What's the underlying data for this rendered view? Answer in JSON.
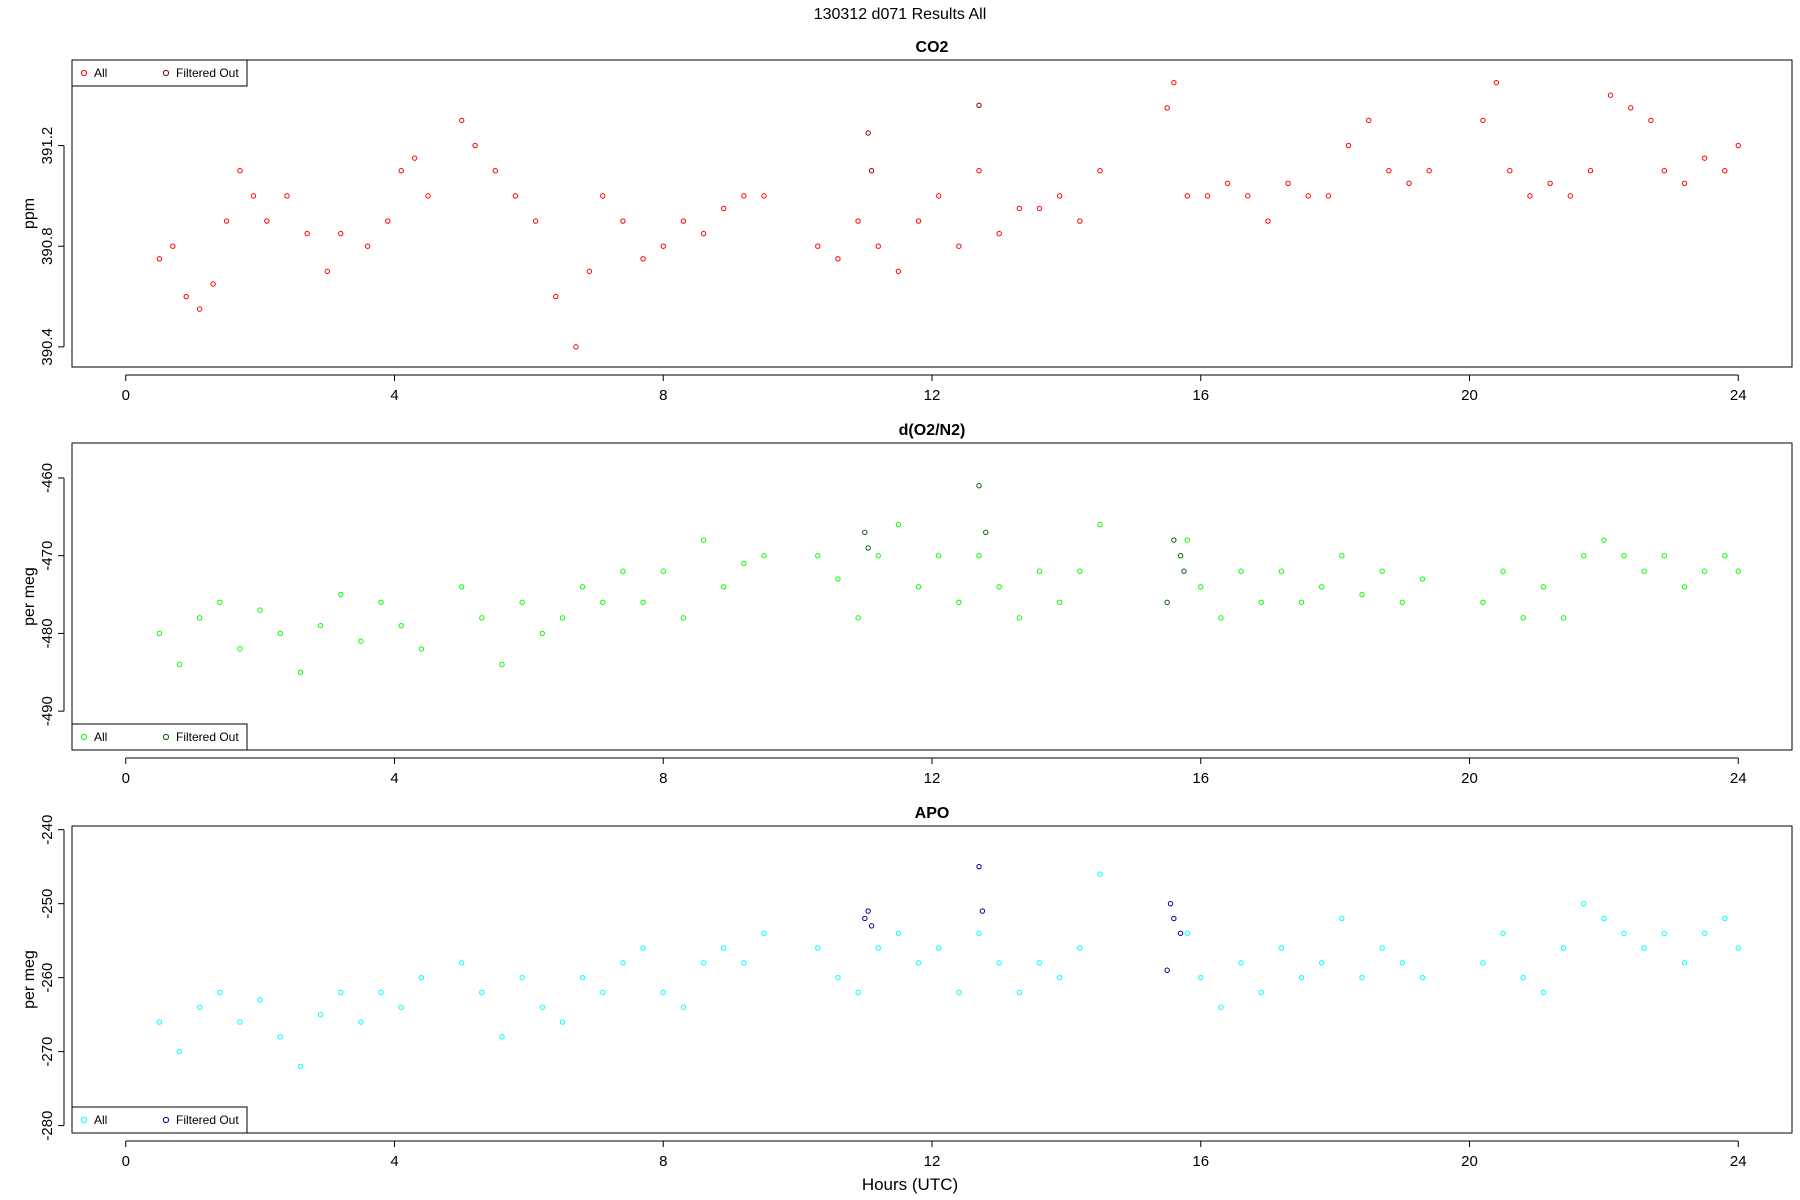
{
  "page_title": "130312   d071   Results All",
  "xlabel": "Hours (UTC)",
  "legend_labels": [
    "All",
    "Filtered Out"
  ],
  "chart_data": [
    {
      "type": "scatter",
      "title": "CO2",
      "ylabel": "ppm",
      "xlim": [
        -0.8,
        24.8
      ],
      "ylim": [
        390.32,
        391.54
      ],
      "xticks": [
        "0",
        "4",
        "8",
        "12",
        "16",
        "20",
        "24"
      ],
      "yticks": [
        "390.4",
        "390.8",
        "391.2"
      ],
      "legend_position": "top-left",
      "colors": {
        "all": "#ff0000",
        "filtered": "#8b0000"
      },
      "series": [
        {
          "name": "All",
          "points": [
            [
              0.5,
              390.75
            ],
            [
              0.7,
              390.8
            ],
            [
              0.9,
              390.6
            ],
            [
              1.1,
              390.55
            ],
            [
              1.3,
              390.65
            ],
            [
              1.5,
              390.9
            ],
            [
              1.7,
              391.1
            ],
            [
              1.9,
              391.0
            ],
            [
              2.1,
              390.9
            ],
            [
              2.4,
              391.0
            ],
            [
              2.7,
              390.85
            ],
            [
              3.0,
              390.7
            ],
            [
              3.2,
              390.85
            ],
            [
              3.6,
              390.8
            ],
            [
              3.9,
              390.9
            ],
            [
              4.1,
              391.1
            ],
            [
              4.3,
              391.15
            ],
            [
              4.5,
              391.0
            ],
            [
              5.0,
              391.3
            ],
            [
              5.2,
              391.2
            ],
            [
              5.5,
              391.1
            ],
            [
              5.8,
              391.0
            ],
            [
              6.1,
              390.9
            ],
            [
              6.4,
              390.6
            ],
            [
              6.7,
              390.4
            ],
            [
              6.9,
              390.7
            ],
            [
              7.1,
              391.0
            ],
            [
              7.4,
              390.9
            ],
            [
              7.7,
              390.75
            ],
            [
              8.0,
              390.8
            ],
            [
              8.3,
              390.9
            ],
            [
              8.6,
              390.85
            ],
            [
              8.9,
              390.95
            ],
            [
              9.2,
              391.0
            ],
            [
              9.5,
              391.0
            ],
            [
              10.3,
              390.8
            ],
            [
              10.6,
              390.75
            ],
            [
              10.9,
              390.9
            ],
            [
              11.2,
              390.8
            ],
            [
              11.5,
              390.7
            ],
            [
              11.8,
              390.9
            ],
            [
              12.1,
              391.0
            ],
            [
              12.4,
              390.8
            ],
            [
              12.7,
              391.1
            ],
            [
              13.0,
              390.85
            ],
            [
              13.3,
              390.95
            ],
            [
              13.6,
              390.95
            ],
            [
              13.9,
              391.0
            ],
            [
              14.2,
              390.9
            ],
            [
              14.5,
              391.1
            ],
            [
              15.5,
              391.35
            ],
            [
              15.6,
              391.45
            ],
            [
              15.8,
              391.0
            ],
            [
              16.1,
              391.0
            ],
            [
              16.4,
              391.05
            ],
            [
              16.7,
              391.0
            ],
            [
              17.0,
              390.9
            ],
            [
              17.3,
              391.05
            ],
            [
              17.6,
              391.0
            ],
            [
              17.9,
              391.0
            ],
            [
              18.2,
              391.2
            ],
            [
              18.5,
              391.3
            ],
            [
              18.8,
              391.1
            ],
            [
              19.1,
              391.05
            ],
            [
              19.4,
              391.1
            ],
            [
              20.2,
              391.3
            ],
            [
              20.4,
              391.45
            ],
            [
              20.6,
              391.1
            ],
            [
              20.9,
              391.0
            ],
            [
              21.2,
              391.05
            ],
            [
              21.5,
              391.0
            ],
            [
              21.8,
              391.1
            ],
            [
              22.1,
              391.4
            ],
            [
              22.4,
              391.35
            ],
            [
              22.7,
              391.3
            ],
            [
              22.9,
              391.1
            ],
            [
              23.2,
              391.05
            ],
            [
              23.5,
              391.15
            ],
            [
              23.8,
              391.1
            ],
            [
              24.0,
              391.2
            ]
          ]
        },
        {
          "name": "Filtered Out",
          "points": [
            [
              11.05,
              391.25
            ],
            [
              11.1,
              391.1
            ],
            [
              12.7,
              391.36
            ]
          ]
        }
      ]
    },
    {
      "type": "scatter",
      "title": "d(O2/N2)",
      "ylabel": "per meg",
      "xlim": [
        -0.8,
        24.8
      ],
      "ylim": [
        -495,
        -455.5
      ],
      "xticks": [
        "0",
        "4",
        "8",
        "12",
        "16",
        "20",
        "24"
      ],
      "yticks": [
        "-460",
        "-470",
        "-480",
        "-490"
      ],
      "legend_position": "bottom-left",
      "colors": {
        "all": "#00ff00",
        "filtered": "#006400"
      },
      "series": [
        {
          "name": "All",
          "points": [
            [
              0.5,
              -480
            ],
            [
              0.8,
              -484
            ],
            [
              1.1,
              -478
            ],
            [
              1.4,
              -476
            ],
            [
              1.7,
              -482
            ],
            [
              2.0,
              -477
            ],
            [
              2.3,
              -480
            ],
            [
              2.6,
              -485
            ],
            [
              2.9,
              -479
            ],
            [
              3.2,
              -475
            ],
            [
              3.5,
              -481
            ],
            [
              3.8,
              -476
            ],
            [
              4.1,
              -479
            ],
            [
              4.4,
              -482
            ],
            [
              5.0,
              -474
            ],
            [
              5.3,
              -478
            ],
            [
              5.6,
              -484
            ],
            [
              5.9,
              -476
            ],
            [
              6.2,
              -480
            ],
            [
              6.5,
              -478
            ],
            [
              6.8,
              -474
            ],
            [
              7.1,
              -476
            ],
            [
              7.4,
              -472
            ],
            [
              7.7,
              -476
            ],
            [
              8.0,
              -472
            ],
            [
              8.3,
              -478
            ],
            [
              8.6,
              -468
            ],
            [
              8.9,
              -474
            ],
            [
              9.2,
              -471
            ],
            [
              9.5,
              -470
            ],
            [
              10.3,
              -470
            ],
            [
              10.6,
              -473
            ],
            [
              10.9,
              -478
            ],
            [
              11.2,
              -470
            ],
            [
              11.5,
              -466
            ],
            [
              11.8,
              -474
            ],
            [
              12.1,
              -470
            ],
            [
              12.4,
              -476
            ],
            [
              12.7,
              -470
            ],
            [
              13.0,
              -474
            ],
            [
              13.3,
              -478
            ],
            [
              13.6,
              -472
            ],
            [
              13.9,
              -476
            ],
            [
              14.2,
              -472
            ],
            [
              14.5,
              -466
            ],
            [
              15.8,
              -468
            ],
            [
              16.0,
              -474
            ],
            [
              16.3,
              -478
            ],
            [
              16.6,
              -472
            ],
            [
              16.9,
              -476
            ],
            [
              17.2,
              -472
            ],
            [
              17.5,
              -476
            ],
            [
              17.8,
              -474
            ],
            [
              18.1,
              -470
            ],
            [
              18.4,
              -475
            ],
            [
              18.7,
              -472
            ],
            [
              19.0,
              -476
            ],
            [
              19.3,
              -473
            ],
            [
              20.2,
              -476
            ],
            [
              20.5,
              -472
            ],
            [
              20.8,
              -478
            ],
            [
              21.1,
              -474
            ],
            [
              21.4,
              -478
            ],
            [
              21.7,
              -470
            ],
            [
              22.0,
              -468
            ],
            [
              22.3,
              -470
            ],
            [
              22.6,
              -472
            ],
            [
              22.9,
              -470
            ],
            [
              23.2,
              -474
            ],
            [
              23.5,
              -472
            ],
            [
              23.8,
              -470
            ],
            [
              24.0,
              -472
            ]
          ]
        },
        {
          "name": "Filtered Out",
          "points": [
            [
              11.0,
              -467
            ],
            [
              11.05,
              -469
            ],
            [
              12.7,
              -461
            ],
            [
              12.8,
              -467
            ],
            [
              15.5,
              -476
            ],
            [
              15.6,
              -468
            ],
            [
              15.7,
              -470
            ],
            [
              15.75,
              -472
            ]
          ]
        }
      ]
    },
    {
      "type": "scatter",
      "title": "APO",
      "ylabel": "per meg",
      "xlim": [
        -0.8,
        24.8
      ],
      "ylim": [
        -281,
        -239.5
      ],
      "xticks": [
        "0",
        "4",
        "8",
        "12",
        "16",
        "20",
        "24"
      ],
      "yticks": [
        "-240",
        "-250",
        "-260",
        "-270",
        "-280"
      ],
      "legend_position": "bottom-left",
      "colors": {
        "all": "#00ffff",
        "filtered": "#00008b"
      },
      "series": [
        {
          "name": "All",
          "points": [
            [
              0.5,
              -266
            ],
            [
              0.8,
              -270
            ],
            [
              1.1,
              -264
            ],
            [
              1.4,
              -262
            ],
            [
              1.7,
              -266
            ],
            [
              2.0,
              -263
            ],
            [
              2.3,
              -268
            ],
            [
              2.6,
              -272
            ],
            [
              2.9,
              -265
            ],
            [
              3.2,
              -262
            ],
            [
              3.5,
              -266
            ],
            [
              3.8,
              -262
            ],
            [
              4.1,
              -264
            ],
            [
              4.4,
              -260
            ],
            [
              5.0,
              -258
            ],
            [
              5.3,
              -262
            ],
            [
              5.6,
              -268
            ],
            [
              5.9,
              -260
            ],
            [
              6.2,
              -264
            ],
            [
              6.5,
              -266
            ],
            [
              6.8,
              -260
            ],
            [
              7.1,
              -262
            ],
            [
              7.4,
              -258
            ],
            [
              7.7,
              -256
            ],
            [
              8.0,
              -262
            ],
            [
              8.3,
              -264
            ],
            [
              8.6,
              -258
            ],
            [
              8.9,
              -256
            ],
            [
              9.2,
              -258
            ],
            [
              9.5,
              -254
            ],
            [
              10.3,
              -256
            ],
            [
              10.6,
              -260
            ],
            [
              10.9,
              -262
            ],
            [
              11.2,
              -256
            ],
            [
              11.5,
              -254
            ],
            [
              11.8,
              -258
            ],
            [
              12.1,
              -256
            ],
            [
              12.4,
              -262
            ],
            [
              12.7,
              -254
            ],
            [
              13.0,
              -258
            ],
            [
              13.3,
              -262
            ],
            [
              13.6,
              -258
            ],
            [
              13.9,
              -260
            ],
            [
              14.2,
              -256
            ],
            [
              14.5,
              -246
            ],
            [
              15.8,
              -254
            ],
            [
              16.0,
              -260
            ],
            [
              16.3,
              -264
            ],
            [
              16.6,
              -258
            ],
            [
              16.9,
              -262
            ],
            [
              17.2,
              -256
            ],
            [
              17.5,
              -260
            ],
            [
              17.8,
              -258
            ],
            [
              18.1,
              -252
            ],
            [
              18.4,
              -260
            ],
            [
              18.7,
              -256
            ],
            [
              19.0,
              -258
            ],
            [
              19.3,
              -260
            ],
            [
              20.2,
              -258
            ],
            [
              20.5,
              -254
            ],
            [
              20.8,
              -260
            ],
            [
              21.1,
              -262
            ],
            [
              21.4,
              -256
            ],
            [
              21.7,
              -250
            ],
            [
              22.0,
              -252
            ],
            [
              22.3,
              -254
            ],
            [
              22.6,
              -256
            ],
            [
              22.9,
              -254
            ],
            [
              23.2,
              -258
            ],
            [
              23.5,
              -254
            ],
            [
              23.8,
              -252
            ],
            [
              24.0,
              -256
            ]
          ]
        },
        {
          "name": "Filtered Out",
          "points": [
            [
              11.0,
              -252
            ],
            [
              11.05,
              -251
            ],
            [
              11.1,
              -253
            ],
            [
              12.7,
              -245
            ],
            [
              12.75,
              -251
            ],
            [
              15.5,
              -259
            ],
            [
              15.55,
              -250
            ],
            [
              15.6,
              -252
            ],
            [
              15.7,
              -254
            ]
          ]
        }
      ]
    }
  ]
}
